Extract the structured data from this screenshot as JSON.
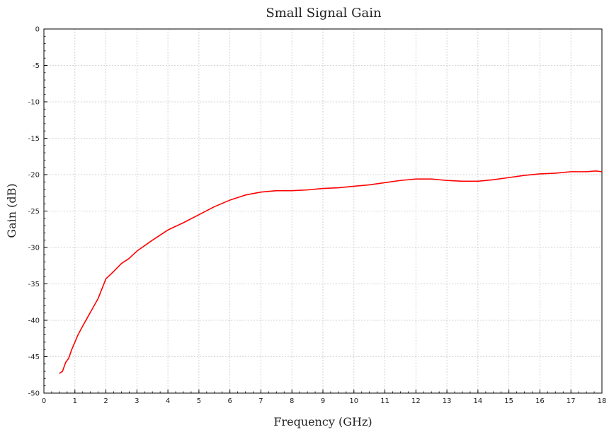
{
  "chart_data": {
    "type": "line",
    "title": "Small Signal Gain",
    "xlabel": "Frequency (GHz)",
    "ylabel": "Gain (dB)",
    "xlim": [
      0,
      18
    ],
    "ylim": [
      -50,
      0
    ],
    "grid": true,
    "x_ticks": [
      0,
      1,
      2,
      3,
      4,
      5,
      6,
      7,
      8,
      9,
      10,
      11,
      12,
      13,
      14,
      15,
      16,
      17,
      18
    ],
    "y_ticks": [
      0,
      -5,
      -10,
      -15,
      -20,
      -25,
      -30,
      -35,
      -40,
      -45,
      -50
    ],
    "series": [
      {
        "color": "#ff0000",
        "points": [
          [
            0.5,
            -47.3
          ],
          [
            0.6,
            -47.0
          ],
          [
            0.7,
            -45.8
          ],
          [
            0.8,
            -45.2
          ],
          [
            0.9,
            -44.0
          ],
          [
            1.0,
            -43.0
          ],
          [
            1.1,
            -42.0
          ],
          [
            1.25,
            -40.8
          ],
          [
            1.5,
            -38.9
          ],
          [
            1.75,
            -37.0
          ],
          [
            2.0,
            -34.3
          ],
          [
            2.25,
            -33.3
          ],
          [
            2.5,
            -32.2
          ],
          [
            2.75,
            -31.5
          ],
          [
            3.0,
            -30.5
          ],
          [
            3.5,
            -29.0
          ],
          [
            4.0,
            -27.6
          ],
          [
            4.5,
            -26.6
          ],
          [
            5.0,
            -25.5
          ],
          [
            5.5,
            -24.4
          ],
          [
            6.0,
            -23.5
          ],
          [
            6.5,
            -22.8
          ],
          [
            7.0,
            -22.4
          ],
          [
            7.5,
            -22.2
          ],
          [
            8.0,
            -22.2
          ],
          [
            8.5,
            -22.1
          ],
          [
            9.0,
            -21.9
          ],
          [
            9.5,
            -21.8
          ],
          [
            10.0,
            -21.6
          ],
          [
            10.5,
            -21.4
          ],
          [
            11.0,
            -21.1
          ],
          [
            11.5,
            -20.8
          ],
          [
            12.0,
            -20.6
          ],
          [
            12.5,
            -20.6
          ],
          [
            13.0,
            -20.8
          ],
          [
            13.5,
            -20.9
          ],
          [
            14.0,
            -20.9
          ],
          [
            14.5,
            -20.7
          ],
          [
            15.0,
            -20.4
          ],
          [
            15.5,
            -20.1
          ],
          [
            16.0,
            -19.9
          ],
          [
            16.5,
            -19.8
          ],
          [
            17.0,
            -19.6
          ],
          [
            17.5,
            -19.6
          ],
          [
            17.8,
            -19.5
          ],
          [
            18.0,
            -19.6
          ]
        ]
      }
    ]
  }
}
